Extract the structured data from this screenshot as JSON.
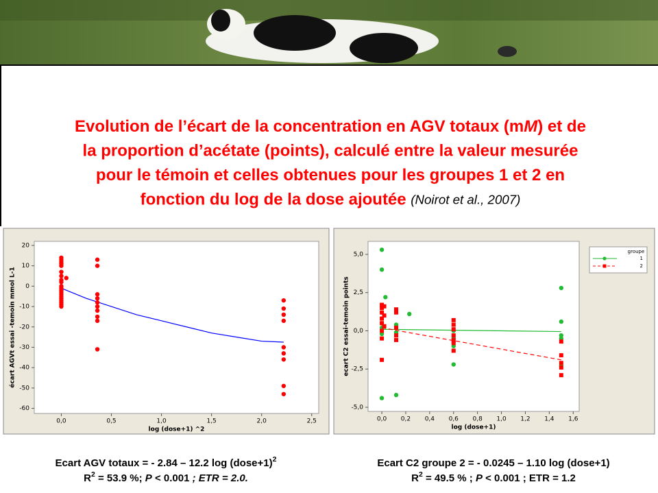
{
  "slide": {
    "title_lines": [
      [
        {
          "text": "Evolution de l’écart de la concentration en AGV totaux (m"
        },
        {
          "text": "M",
          "style": "italic"
        },
        {
          "text": ") et de"
        }
      ],
      [
        {
          "text": "la proportion d’acétate (points), calculé entre la valeur mesurée"
        }
      ],
      [
        {
          "text": "pour le témoin et celles obtenues pour les groupes 1 et 2 en"
        }
      ],
      [
        {
          "text": "fonction du log de la dose ajoutée "
        },
        {
          "text": "(Noirot et al., 2007)",
          "style": "cite"
        }
      ]
    ],
    "equations": [
      [
        [
          {
            "text": "Ecart AGV totaux = - 2.84 – 12.2 log (dose+1)"
          },
          {
            "text": "2",
            "style": "sup"
          }
        ],
        [
          {
            "text": "R"
          },
          {
            "text": "2",
            "style": "sup"
          },
          {
            "text": " = 53.9 %; "
          },
          {
            "text": "P",
            "style": "italic"
          },
          {
            "text": " < 0.001"
          },
          {
            "text": " ; ETR = 2.0.",
            "style": "italic"
          }
        ]
      ],
      [
        [
          {
            "text": "Ecart C2 groupe 2 = - 0.0245 – 1.10 log (dose+1)"
          }
        ],
        [
          {
            "text": "R"
          },
          {
            "text": "2",
            "style": "sup"
          },
          {
            "text": " = 49.5 % ; "
          },
          {
            "text": "P",
            "style": "italic"
          },
          {
            "text": " < 0.001 ; ETR = 1.2"
          }
        ]
      ]
    ]
  },
  "chart_data": [
    {
      "type": "scatter",
      "x_label": "log (dose+1) ^2",
      "y_label": "écart AGVt essai -temoin mmol L-1",
      "xlim": [
        -0.27,
        2.57
      ],
      "ylim": [
        -62.5,
        22
      ],
      "xticks": [
        {
          "value": 0,
          "label": "0,0"
        },
        {
          "value": 0.5,
          "label": "0,5"
        },
        {
          "value": 1,
          "label": "1,0"
        },
        {
          "value": 1.5,
          "label": "1,5"
        },
        {
          "value": 2,
          "label": "2,0"
        },
        {
          "value": 2.5,
          "label": "2,5"
        }
      ],
      "yticks": [
        -60,
        -50,
        -40,
        -30,
        -20,
        -10,
        0,
        10,
        20
      ],
      "series": [
        {
          "color": "#ff0000",
          "x": [
            0,
            0,
            0,
            0,
            0,
            0,
            0,
            0,
            0,
            0,
            0,
            0,
            0,
            0,
            0,
            0,
            0,
            0,
            0,
            0,
            0.05,
            0.36,
            0.36,
            0.36,
            0.36,
            0.36,
            0.36,
            0.36,
            0.36,
            0.36,
            0.36,
            2.22,
            2.22,
            2.22,
            2.22,
            2.22,
            2.22,
            2.22,
            2.22,
            2.22
          ],
          "values": [
            14,
            13,
            12,
            11,
            10,
            7,
            5,
            3,
            2,
            0,
            -1,
            -2,
            -3,
            -4,
            -5,
            -6,
            -7,
            -8,
            -9,
            -10,
            4,
            13,
            10,
            -4,
            -6,
            -8,
            -10,
            -12,
            -15,
            -17,
            -31,
            -7,
            -11,
            -14,
            -17,
            -30,
            -33,
            -36,
            -49,
            -53
          ],
          "fit": {
            "color": "#0000ff",
            "x": [
              0,
              0.25,
              0.5,
              0.75,
              1,
              1.25,
              1.5,
              1.75,
              2,
              2.22
            ],
            "values": [
              -1,
              -6,
              -10,
              -14,
              -17,
              -20,
              -23,
              -25,
              -27,
              -27.5
            ]
          }
        }
      ]
    },
    {
      "type": "scatter",
      "x_label": "log (dose+1)",
      "y_label": "ecart C2 essai-temoin points",
      "legend_title": "groupe",
      "legend": "top-right-outside",
      "xlim": [
        -0.115,
        1.65
      ],
      "ylim": [
        -5.27,
        5.85
      ],
      "xticks": [
        {
          "value": 0,
          "label": "0,0"
        },
        {
          "value": 0.2,
          "label": "0,2"
        },
        {
          "value": 0.4,
          "label": "0,4"
        },
        {
          "value": 0.6,
          "label": "0,6"
        },
        {
          "value": 0.8,
          "label": "0,8"
        },
        {
          "value": 1,
          "label": "1,0"
        },
        {
          "value": 1.2,
          "label": "1,2"
        },
        {
          "value": 1.4,
          "label": "1,4"
        },
        {
          "value": 1.6,
          "label": "1,6"
        }
      ],
      "yticks": [
        {
          "value": -5,
          "label": "-5,0"
        },
        {
          "value": -2.5,
          "label": "-2,5"
        },
        {
          "value": 0,
          "label": "0,0"
        },
        {
          "value": 2.5,
          "label": "2,5"
        },
        {
          "value": 5,
          "label": "5,0"
        }
      ],
      "series": [
        {
          "name": "1",
          "color": "#22bb33",
          "marker": "circle",
          "x": [
            0,
            0,
            0,
            0,
            0,
            0,
            0,
            0.03,
            0.12,
            0.12,
            0.12,
            0.23,
            0.6,
            0.6,
            0.6,
            0.6,
            1.5,
            1.5,
            1.5,
            1.5,
            1.5
          ],
          "values": [
            5.3,
            4.0,
            1.2,
            0.5,
            0.2,
            -0.2,
            -4.4,
            2.2,
            0.4,
            -0.1,
            -4.2,
            1.1,
            0.0,
            -0.5,
            -1.0,
            -2.2,
            2.8,
            0.6,
            -0.3,
            -0.5,
            -2.3
          ],
          "fit": {
            "dash": false,
            "x": [
              0,
              1.5
            ],
            "values": [
              0.1,
              -0.05
            ]
          }
        },
        {
          "name": "2",
          "color": "#ff0000",
          "marker": "square",
          "x": [
            0,
            0,
            0,
            0,
            0,
            0,
            0,
            0,
            0.02,
            0.02,
            0.02,
            0.12,
            0.12,
            0.12,
            0.12,
            0.12,
            0.6,
            0.6,
            0.6,
            0.6,
            0.6,
            0.6,
            0.6,
            1.5,
            1.5,
            1.5,
            1.5,
            1.5
          ],
          "values": [
            1.7,
            1.5,
            1.2,
            0.8,
            0.5,
            0,
            -0.5,
            -1.9,
            1.6,
            1.0,
            0.3,
            1.4,
            1.2,
            0.2,
            -0.3,
            -0.6,
            0.7,
            0.4,
            0.1,
            -0.3,
            -0.6,
            -0.8,
            -1.3,
            -1.6,
            -2.1,
            -2.4,
            -2.9,
            -0.7
          ],
          "fit": {
            "dash": true,
            "x": [
              0,
              1.5
            ],
            "values": [
              0.2,
              -1.9
            ]
          }
        }
      ]
    }
  ]
}
